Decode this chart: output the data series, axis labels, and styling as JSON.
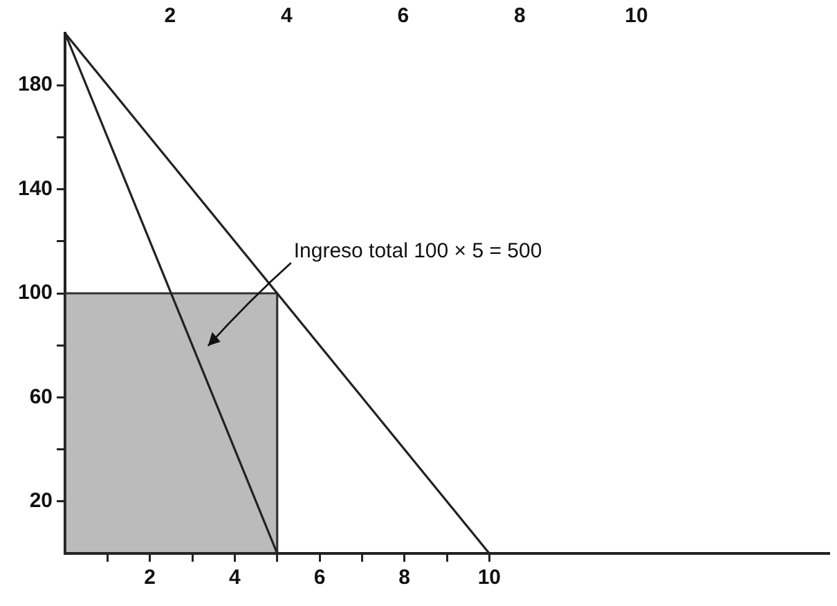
{
  "chart_data": {
    "type": "line",
    "series": [
      {
        "color": "#222222",
        "x": [
          0,
          10
        ],
        "values": [
          200,
          0
        ]
      },
      {
        "color": "#222222",
        "x": [
          0,
          5
        ],
        "values": [
          200,
          0
        ]
      },
      {
        "type": "area",
        "color": "#333333",
        "x": [
          0,
          0,
          5,
          5
        ],
        "values": [
          0,
          100,
          100,
          0
        ]
      }
    ],
    "xlim": [
      0,
      18
    ],
    "xticks": [
      {
        "value": 1,
        "label": null
      },
      2,
      {
        "value": 3,
        "label": null
      },
      4,
      {
        "value": 5,
        "label": null
      },
      6,
      {
        "value": 7,
        "label": null
      },
      8,
      {
        "value": 9,
        "label": null
      },
      10
    ],
    "ylim": [
      0,
      200
    ],
    "yticks": [
      20,
      {
        "value": 40,
        "label": null
      },
      60,
      {
        "value": 80,
        "label": null
      },
      100,
      {
        "value": 120,
        "label": null
      },
      140,
      {
        "value": 160,
        "label": null
      },
      180
    ],
    "x2lim": [
      0.2,
      13.3
    ],
    "x2ticks": [
      2,
      4,
      6,
      8,
      10
    ],
    "annotations": [
      {
        "text": "Ingreso total 100 × 5 = 500",
        "x": 5,
        "y": 100
      }
    ],
    "grid": false,
    "legend": false,
    "marker": "none",
    "line_style": "solid"
  }
}
